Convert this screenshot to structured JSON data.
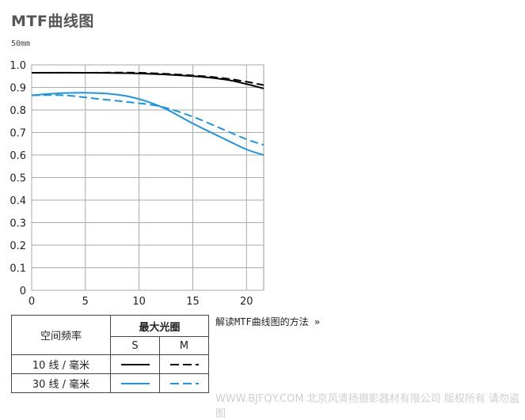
{
  "page": {
    "title": "MTF曲线图",
    "subtitle": "50mm",
    "howto_link": "解读MTF曲线图的方法 »",
    "watermark": "WWW.BJFQY.COM 北京风清扬摄影器材有限公司 版权所有 请勿盗图"
  },
  "legend_table": {
    "col_header_left": "空间频率",
    "col_header_group": "最大光圈",
    "col_s": "S",
    "col_m": "M",
    "rows": [
      {
        "label": "10 线 / 毫米",
        "color": "#000000"
      },
      {
        "label": "30 线 / 毫米",
        "color": "#1a96e6"
      }
    ]
  },
  "chart_data": {
    "type": "line",
    "title": "MTF曲线图",
    "subtitle": "50mm",
    "xlim": [
      0,
      21.6
    ],
    "ylim": [
      0,
      1.0
    ],
    "xticks": [
      0,
      5,
      10,
      15,
      20
    ],
    "yticks": [
      0,
      0.1,
      0.2,
      0.3,
      0.4,
      0.5,
      0.6,
      0.7,
      0.8,
      0.9,
      1.0
    ],
    "grid": true,
    "series": [
      {
        "name": "10 线 / 毫米 S",
        "color": "#000000",
        "dash": false,
        "x": [
          0,
          5,
          10,
          15,
          18,
          20,
          21.6
        ],
        "y": [
          0.965,
          0.965,
          0.962,
          0.95,
          0.935,
          0.915,
          0.895
        ]
      },
      {
        "name": "10 线 / 毫米 M",
        "color": "#000000",
        "dash": true,
        "x": [
          0,
          5,
          10,
          15,
          18,
          20,
          21.6
        ],
        "y": [
          0.965,
          0.965,
          0.965,
          0.953,
          0.94,
          0.925,
          0.91
        ]
      },
      {
        "name": "30 线 / 毫米 S",
        "color": "#1a96e6",
        "dash": false,
        "x": [
          0,
          3,
          6,
          9,
          12,
          15,
          18,
          20,
          21.6
        ],
        "y": [
          0.865,
          0.875,
          0.875,
          0.86,
          0.815,
          0.74,
          0.67,
          0.625,
          0.6
        ]
      },
      {
        "name": "30 线 / 毫米 M",
        "color": "#1a96e6",
        "dash": true,
        "x": [
          0,
          3,
          6,
          9,
          12,
          15,
          18,
          20,
          21.6
        ],
        "y": [
          0.865,
          0.865,
          0.85,
          0.835,
          0.815,
          0.77,
          0.71,
          0.67,
          0.645
        ]
      }
    ]
  }
}
